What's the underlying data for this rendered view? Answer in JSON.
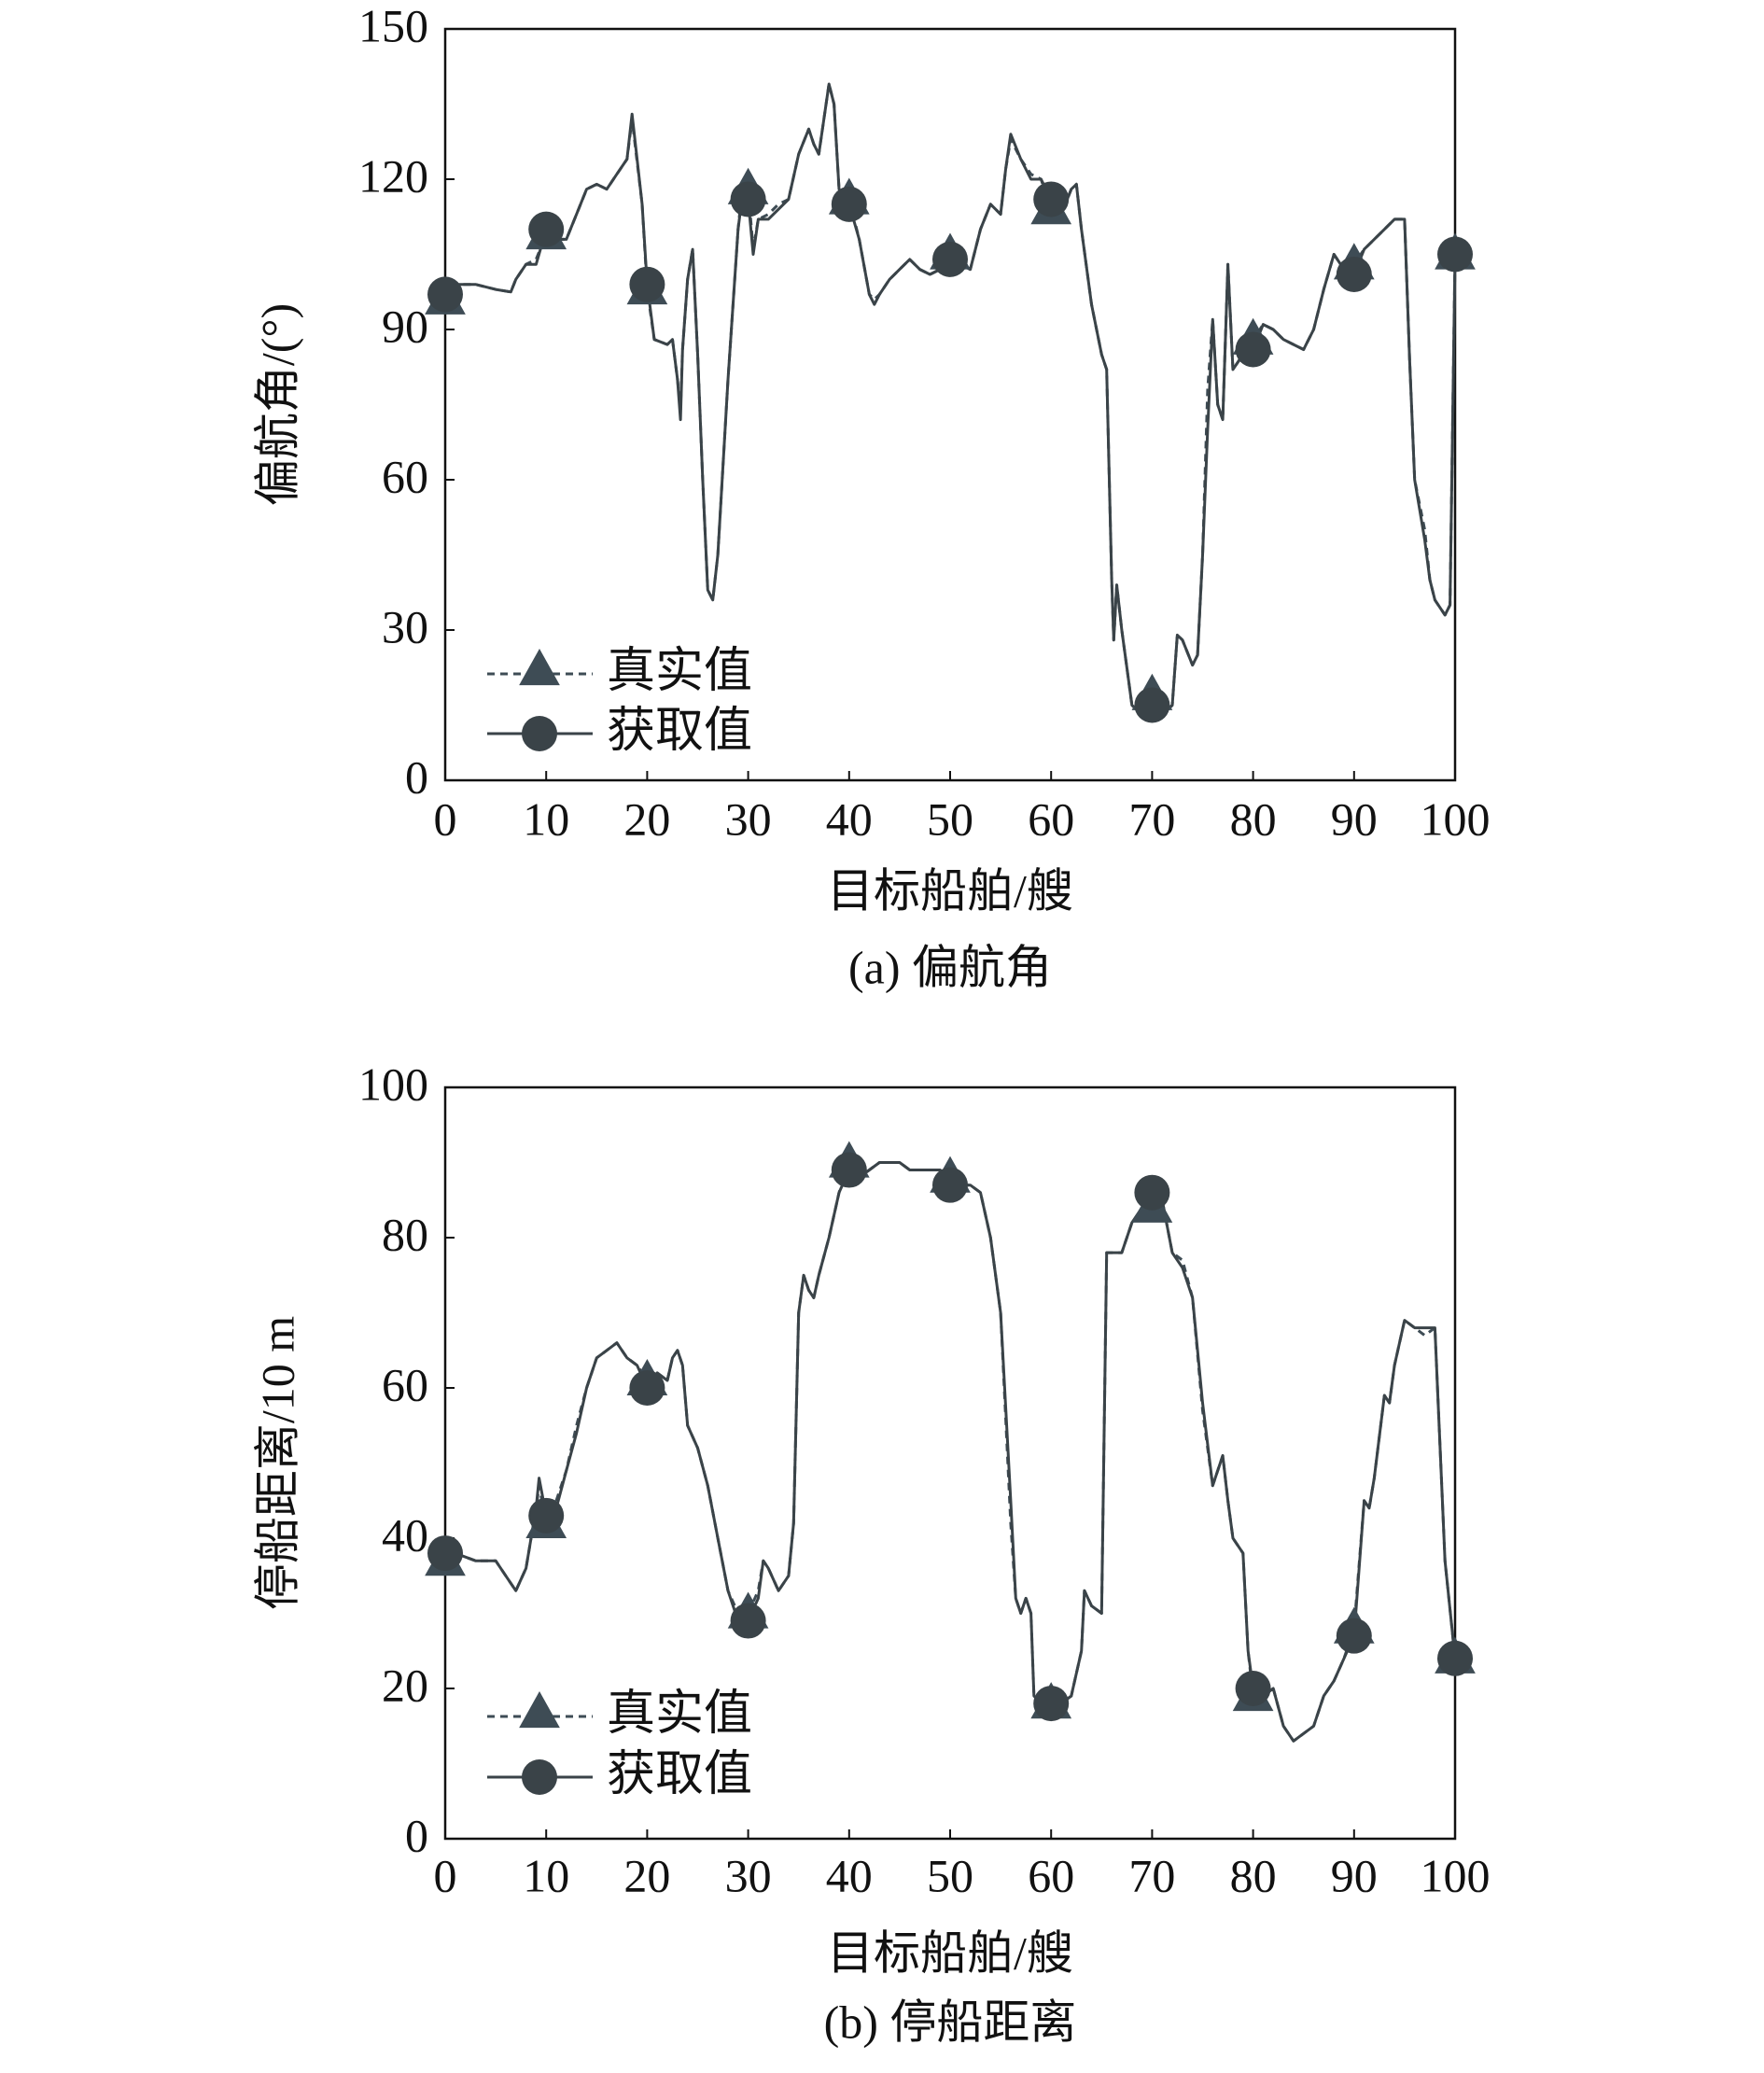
{
  "chart_data": [
    {
      "type": "line",
      "caption": "(a) 偏航角",
      "xlabel": "目标船舶/艘",
      "ylabel": "偏航角/(°)",
      "xlim": [
        0,
        100
      ],
      "xticks": [
        0,
        10,
        20,
        30,
        40,
        50,
        60,
        70,
        80,
        90,
        100
      ],
      "ylim": [
        0,
        150
      ],
      "yticks": [
        0,
        30,
        60,
        90,
        120,
        150
      ],
      "x": [
        0,
        1,
        3,
        5,
        6.5,
        7,
        8,
        9,
        10,
        11,
        12,
        13,
        14,
        15,
        16,
        17,
        18,
        18.5,
        19.5,
        20,
        20.7,
        22,
        22.5,
        23,
        23.3,
        23.5,
        24,
        24.5,
        25,
        25.5,
        26,
        26.5,
        27,
        28,
        29,
        29.5,
        30,
        30.5,
        31,
        32,
        33,
        34,
        35,
        36,
        36.5,
        37,
        38,
        38.5,
        39,
        40,
        41,
        42,
        42.5,
        43,
        44,
        45,
        46,
        47,
        48,
        49,
        50,
        51,
        52,
        53,
        54,
        55,
        55.5,
        56,
        57,
        58,
        59,
        60,
        61,
        62,
        62.5,
        63,
        64,
        65,
        65.5,
        66,
        66.2,
        66.5,
        67,
        68,
        69,
        70,
        71,
        72,
        72.5,
        73,
        74,
        74.5,
        75,
        75.5,
        76,
        76.5,
        77,
        77.5,
        78,
        79,
        80,
        81,
        82,
        83,
        84,
        85,
        86,
        87,
        88,
        89,
        90,
        91,
        92,
        93,
        94,
        95,
        95.5,
        96,
        97,
        97.5,
        98,
        99,
        99.5,
        100
      ],
      "series": [
        {
          "name": "真实值",
          "color": "#3e4c55",
          "style": "dashed",
          "marker": "triangle",
          "values": [
            96,
            99,
            99,
            98,
            97.5,
            100,
            103,
            104,
            109,
            108,
            108,
            113,
            118,
            119,
            118,
            121,
            124,
            132,
            115,
            98,
            88,
            87,
            88,
            80,
            74,
            86,
            100,
            106,
            85,
            60,
            38,
            36,
            45,
            80,
            110,
            120,
            118,
            106,
            112,
            113,
            115,
            116,
            125,
            130,
            127,
            125,
            139,
            135,
            118,
            116,
            108,
            97,
            96,
            97,
            100,
            102,
            104,
            102,
            101,
            102,
            105,
            103,
            102,
            110,
            115,
            113,
            122,
            128,
            124,
            121,
            120,
            114,
            113,
            118,
            119,
            110,
            95,
            85,
            82,
            40,
            28,
            39,
            30,
            15,
            13,
            17,
            13,
            15,
            29,
            28,
            23,
            25,
            45,
            78,
            92,
            75,
            72,
            103,
            82,
            85,
            88,
            91,
            90,
            88,
            87,
            86,
            90,
            98,
            105,
            102,
            103,
            106,
            108,
            110,
            112,
            112,
            84,
            60,
            50,
            40,
            36,
            33,
            35,
            105
          ]
        },
        {
          "name": "获取值",
          "color": "#3a4348",
          "style": "solid",
          "marker": "circle",
          "values": [
            97,
            99,
            99,
            98,
            97.5,
            100,
            103,
            103,
            110,
            108,
            108,
            113,
            118,
            119,
            118,
            121,
            124,
            133,
            115,
            99,
            88,
            87,
            88,
            80,
            72,
            86,
            100,
            106,
            85,
            60,
            38,
            36,
            45,
            80,
            110,
            118,
            116,
            105,
            112,
            112,
            114,
            116,
            125,
            130,
            127,
            125,
            139,
            135,
            118,
            115,
            108,
            97,
            95,
            97,
            100,
            102,
            104,
            102,
            101,
            102,
            104,
            103,
            102,
            110,
            115,
            113,
            122,
            129,
            124,
            120,
            120,
            116,
            113,
            118,
            119,
            110,
            95,
            85,
            82,
            40,
            28,
            39,
            30,
            15,
            13,
            15,
            13,
            15,
            29,
            28,
            23,
            25,
            45,
            70,
            92,
            75,
            72,
            103,
            82,
            85,
            86,
            91,
            90,
            88,
            87,
            86,
            90,
            98,
            105,
            102,
            101,
            106,
            108,
            110,
            112,
            112,
            84,
            60,
            48,
            40,
            36,
            33,
            35,
            105
          ]
        }
      ]
    },
    {
      "type": "line",
      "caption": "(b) 停船距离",
      "xlabel": "目标船舶/艘",
      "ylabel": "停船距离/10 m",
      "xlim": [
        0,
        100
      ],
      "xticks": [
        0,
        10,
        20,
        30,
        40,
        50,
        60,
        70,
        80,
        90,
        100
      ],
      "ylim": [
        0,
        100
      ],
      "yticks": [
        0,
        20,
        40,
        60,
        80,
        100
      ],
      "x": [
        0,
        1,
        3,
        5,
        6,
        7,
        8,
        9,
        9.3,
        10,
        11,
        12,
        13,
        14,
        15,
        16,
        17,
        18,
        19,
        20,
        21,
        22,
        22.5,
        23,
        23.5,
        24,
        25,
        26,
        27,
        28,
        29,
        30,
        31,
        31.5,
        32,
        33,
        34,
        34.5,
        35,
        35.5,
        36,
        36.5,
        37,
        38,
        39,
        40,
        41,
        42,
        43,
        44,
        45,
        46,
        47,
        48,
        49,
        50,
        51,
        52,
        53,
        54,
        55,
        56,
        56.5,
        57,
        57.5,
        58,
        58.3,
        59,
        60,
        61,
        62,
        63,
        63.3,
        64,
        65,
        65.5,
        66,
        67,
        68,
        69,
        70,
        71,
        72,
        73,
        74,
        75,
        76,
        77,
        77.5,
        78,
        79,
        79.5,
        80,
        81,
        82,
        83,
        84,
        85,
        86,
        87,
        88,
        89,
        90,
        91,
        91.5,
        92,
        93,
        93.5,
        94,
        95,
        96,
        97,
        98,
        99,
        100
      ],
      "series": [
        {
          "name": "真实值",
          "color": "#3e4c55",
          "style": "dashed",
          "marker": "triangle",
          "values": [
            37,
            38,
            37,
            37,
            35,
            33,
            36,
            44,
            47,
            42,
            45,
            49,
            55,
            60,
            64,
            65,
            66,
            64,
            63,
            61,
            62,
            61,
            64,
            65,
            63,
            55,
            52,
            47,
            40,
            33,
            30,
            30,
            33,
            37,
            36,
            33,
            35,
            42,
            70,
            75,
            73,
            72,
            75,
            80,
            86,
            90,
            88,
            89,
            90,
            90,
            90,
            89,
            89,
            89,
            89,
            88,
            87,
            87,
            86,
            80,
            70,
            42,
            32,
            30,
            32,
            30,
            19,
            18,
            18,
            18,
            19,
            25,
            33,
            31,
            30,
            78,
            78,
            78,
            82,
            83,
            84,
            85,
            78,
            77,
            72,
            57,
            47,
            51,
            45,
            40,
            38,
            25,
            19,
            19,
            20,
            15,
            13,
            14,
            15,
            19,
            21,
            24,
            28,
            45,
            44,
            48,
            59,
            58,
            63,
            69,
            68,
            67,
            68,
            37,
            24
          ]
        },
        {
          "name": "获取值",
          "color": "#3a4348",
          "style": "solid",
          "marker": "circle",
          "values": [
            38,
            38,
            37,
            37,
            35,
            33,
            36,
            44,
            48,
            43,
            44,
            49,
            54,
            60,
            64,
            65,
            66,
            64,
            63,
            60,
            62,
            61,
            64,
            65,
            63,
            55,
            52,
            47,
            40,
            33,
            29,
            29,
            32,
            37,
            36,
            33,
            35,
            42,
            70,
            75,
            73,
            72,
            75,
            80,
            86,
            89,
            88,
            89,
            90,
            90,
            90,
            89,
            89,
            89,
            89,
            87,
            87,
            87,
            86,
            80,
            70,
            45,
            32,
            30,
            32,
            30,
            19,
            18,
            18,
            18,
            19,
            25,
            33,
            31,
            30,
            78,
            78,
            78,
            82,
            84,
            86,
            85,
            78,
            76,
            72,
            58,
            47,
            51,
            45,
            40,
            38,
            25,
            20,
            19,
            20,
            15,
            13,
            14,
            15,
            19,
            21,
            24,
            27,
            45,
            44,
            48,
            59,
            58,
            63,
            69,
            68,
            68,
            68,
            37,
            24
          ]
        }
      ]
    }
  ]
}
